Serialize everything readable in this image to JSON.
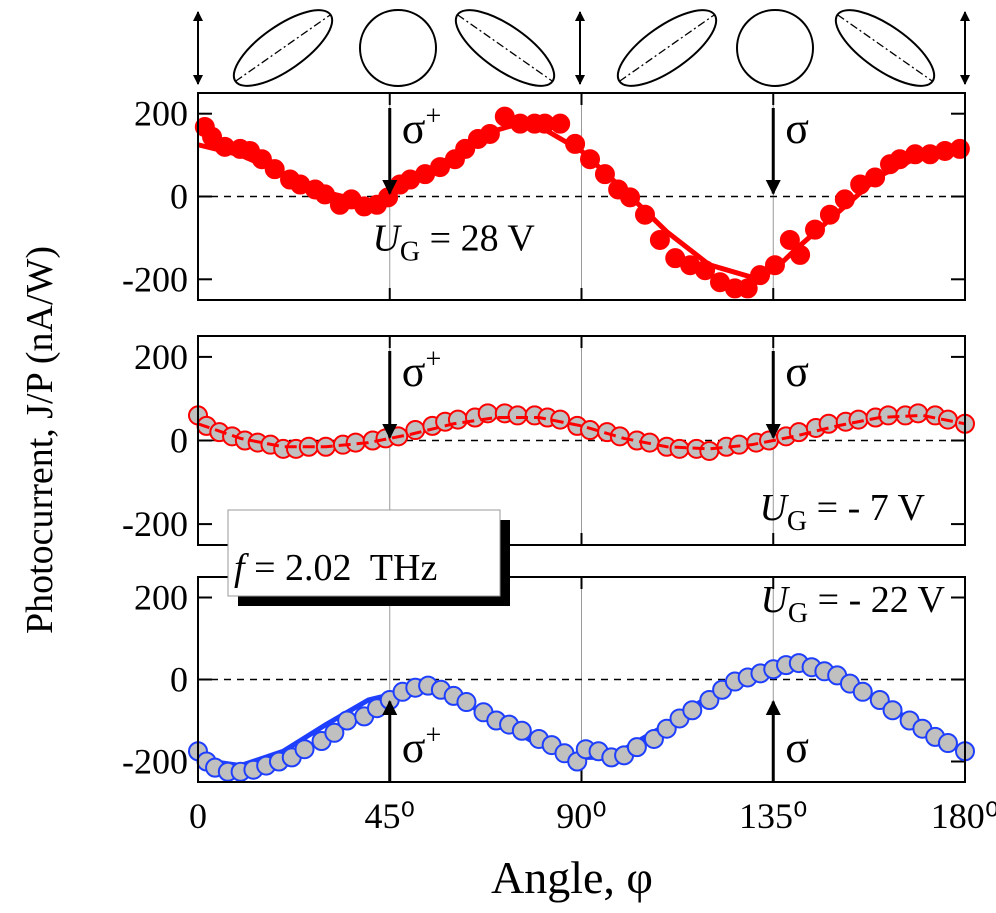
{
  "ylabel": "Photocurrent, J/P (nA/W)",
  "xlabel": "Angle,  φ",
  "note": "f = 2.02  THz",
  "chart_data": [
    {
      "type": "scatter",
      "xlim": [
        0,
        180
      ],
      "xticks": [
        0,
        45,
        90,
        135,
        180
      ],
      "ylim": [
        -250,
        250
      ],
      "yticks": [
        -200,
        0,
        200
      ],
      "grid": "x",
      "zero_line": true,
      "label": "UG = 28 V",
      "label_loc": "center",
      "annotations": [
        {
          "text": "σ+",
          "x": 45,
          "arrow": "down"
        },
        {
          "text": "σ",
          "x": 135,
          "arrow": "down"
        }
      ],
      "points": {
        "color": "#ff0000",
        "edgecolor": "#ff0000",
        "x": [
          1.6,
          3.3,
          6.3,
          9.9,
          12.2,
          15,
          18,
          21.6,
          24,
          27.5,
          29.8,
          33.3,
          36,
          39,
          42,
          44.6,
          47.4,
          49.8,
          53.3,
          56.8,
          60.3,
          62.7,
          65.7,
          68.5,
          72,
          75.6,
          79,
          81.4,
          85,
          88.5,
          92,
          95.5,
          98.6,
          101.4,
          104.9,
          108.4,
          112,
          115.5,
          119,
          122.5,
          126,
          129,
          131.9,
          135.4,
          138.9,
          141.3,
          144.8,
          148.3,
          151.8,
          155.4,
          158.9,
          162.4,
          164.7,
          168.3,
          171.8,
          175.3,
          178.8
        ],
        "values": [
          168,
          144,
          120,
          115,
          110,
          90,
          66,
          41,
          29,
          17,
          5,
          -20,
          -7,
          -24,
          -20,
          -2,
          29,
          41,
          54,
          71,
          90,
          115,
          139,
          151,
          193,
          176,
          176,
          176,
          176,
          127,
          90,
          54,
          17,
          -2,
          -44,
          -105,
          -149,
          -166,
          -178,
          -207,
          -222,
          -222,
          -190,
          -166,
          -105,
          -141,
          -80,
          -44,
          -7,
          29,
          46,
          78,
          90,
          102,
          102,
          110,
          115
        ]
      },
      "fit": {
        "color": "#ff0000",
        "dash": false,
        "x": [
          0,
          10,
          20,
          30,
          40,
          45,
          50,
          60,
          70,
          75,
          80,
          90,
          100,
          110,
          120,
          130,
          135,
          140,
          150,
          160,
          170,
          180
        ],
        "values": [
          125,
          100,
          55,
          10,
          -15,
          0,
          35,
          100,
          160,
          175,
          170,
          110,
          15,
          -85,
          -165,
          -195,
          -180,
          -130,
          -40,
          50,
          100,
          125
        ]
      }
    },
    {
      "type": "scatter",
      "xlim": [
        0,
        180
      ],
      "xticks": [
        0,
        45,
        90,
        135,
        180
      ],
      "ylim": [
        -250,
        250
      ],
      "yticks": [
        -200,
        0,
        200
      ],
      "grid": "x",
      "zero_line": true,
      "label": "UG = - 7 V",
      "label_loc": "lower right",
      "annotations": [
        {
          "text": "σ+",
          "x": 45,
          "arrow": "down"
        },
        {
          "text": "σ",
          "x": 135,
          "arrow": "down"
        }
      ],
      "points": {
        "color": "#c0c0c0",
        "edgecolor": "#ff0000",
        "x": [
          0,
          2,
          5,
          8,
          11,
          14,
          17,
          20,
          23,
          26,
          30,
          34,
          37,
          41,
          44,
          47,
          51,
          55,
          58,
          61,
          65,
          68,
          72,
          75,
          79,
          82,
          85,
          89,
          92,
          96,
          99,
          103,
          106,
          110,
          113,
          117,
          120,
          124,
          127,
          131,
          134,
          138,
          141,
          145,
          148,
          152,
          155,
          159,
          162,
          166,
          169,
          173,
          176,
          180
        ],
        "values": [
          60,
          35,
          20,
          10,
          0,
          -5,
          -10,
          -20,
          -20,
          -15,
          -15,
          -10,
          -5,
          0,
          5,
          10,
          25,
          35,
          45,
          50,
          55,
          65,
          65,
          60,
          60,
          55,
          50,
          35,
          25,
          20,
          10,
          0,
          -5,
          -15,
          -20,
          -20,
          -25,
          -15,
          -10,
          -5,
          0,
          10,
          20,
          30,
          40,
          45,
          50,
          55,
          60,
          60,
          65,
          60,
          50,
          40
        ]
      },
      "fit": {
        "color": "#ff0000",
        "dash": true,
        "x": [
          0,
          10,
          20,
          30,
          40,
          45,
          50,
          60,
          70,
          80,
          90,
          100,
          110,
          120,
          130,
          135,
          140,
          150,
          160,
          170,
          180
        ],
        "values": [
          40,
          5,
          -15,
          -15,
          -5,
          5,
          15,
          40,
          55,
          55,
          35,
          5,
          -15,
          -20,
          -10,
          0,
          10,
          35,
          55,
          60,
          40
        ]
      }
    },
    {
      "type": "scatter",
      "xlim": [
        0,
        180
      ],
      "xticks": [
        0,
        {
          "value": 45,
          "label": "45⁰"
        },
        {
          "value": 90,
          "label": "90⁰"
        },
        {
          "value": 135,
          "label": "135⁰"
        },
        {
          "value": 180,
          "label": "180⁰"
        }
      ],
      "ylim": [
        -250,
        250
      ],
      "yticks": [
        -200,
        0,
        200
      ],
      "grid": "x",
      "zero_line": true,
      "label": "UG = - 22 V",
      "label_loc": "upper right",
      "annotations": [
        {
          "text": "σ+",
          "x": 45,
          "arrow": "up"
        },
        {
          "text": "σ",
          "x": 135,
          "arrow": "up"
        }
      ],
      "points": {
        "color": "#c0c0c0",
        "edgecolor": "#1f3fff",
        "x": [
          0,
          2,
          4,
          7,
          10,
          13,
          16,
          19,
          22,
          25,
          29,
          32,
          35,
          39,
          42,
          45,
          48,
          51,
          54,
          57,
          60,
          63,
          67,
          70,
          73,
          76,
          80,
          83,
          86,
          89,
          91,
          94,
          97,
          100,
          103,
          107,
          110,
          113,
          116,
          120,
          123,
          126,
          129,
          132,
          135,
          138,
          141,
          144,
          147,
          150,
          153,
          156,
          160,
          163,
          167,
          170,
          173,
          176,
          180
        ],
        "values": [
          -175,
          -200,
          -215,
          -225,
          -225,
          -220,
          -210,
          -200,
          -190,
          -170,
          -150,
          -130,
          -100,
          -90,
          -70,
          -50,
          -30,
          -20,
          -15,
          -25,
          -40,
          -55,
          -80,
          -100,
          -110,
          -125,
          -145,
          -160,
          -180,
          -200,
          -170,
          -175,
          -190,
          -185,
          -165,
          -145,
          -120,
          -95,
          -75,
          -50,
          -25,
          -5,
          5,
          15,
          25,
          35,
          40,
          30,
          20,
          10,
          -10,
          -30,
          -50,
          -75,
          -100,
          -120,
          -140,
          -155,
          -175
        ]
      },
      "fit": {
        "color": "#1f3fff",
        "dash": false,
        "x": [
          0,
          10,
          20,
          30,
          40,
          50,
          55,
          60,
          70,
          80,
          90,
          95,
          100,
          110,
          120,
          130,
          140,
          145,
          150,
          160,
          170,
          180
        ],
        "values": [
          -195,
          -210,
          -175,
          -110,
          -50,
          -25,
          -25,
          -40,
          -100,
          -160,
          -190,
          -190,
          -170,
          -110,
          -40,
          15,
          40,
          35,
          10,
          -50,
          -120,
          -180
        ]
      }
    }
  ]
}
